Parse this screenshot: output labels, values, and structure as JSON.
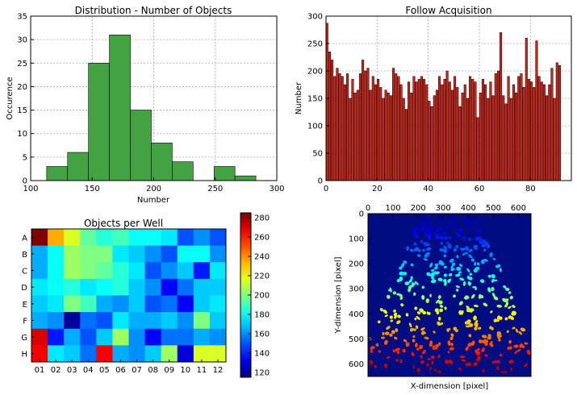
{
  "colors": {
    "hist_bar": "#43a343",
    "follow_bar": "#d62214",
    "image_bg": "#000d82"
  },
  "chart_data": [
    {
      "id": "hist",
      "type": "bar",
      "title": "Distribution - Number of Objects",
      "xlabel": "Number",
      "ylabel": "Occurence",
      "xlim": [
        100,
        300
      ],
      "ylim": [
        0,
        35
      ],
      "xticks": [
        100,
        150,
        200,
        250,
        300
      ],
      "yticks": [
        0,
        5,
        10,
        15,
        20,
        25,
        30,
        35
      ],
      "grid": true,
      "bins": [
        {
          "x0": 113,
          "x1": 130,
          "count": 3
        },
        {
          "x0": 130,
          "x1": 147,
          "count": 6
        },
        {
          "x0": 147,
          "x1": 164,
          "count": 25
        },
        {
          "x0": 164,
          "x1": 181,
          "count": 31
        },
        {
          "x0": 181,
          "x1": 198,
          "count": 15
        },
        {
          "x0": 198,
          "x1": 215,
          "count": 8
        },
        {
          "x0": 215,
          "x1": 232,
          "count": 4
        },
        {
          "x0": 232,
          "x1": 249,
          "count": 0
        },
        {
          "x0": 249,
          "x1": 266,
          "count": 3
        },
        {
          "x0": 266,
          "x1": 283,
          "count": 1
        }
      ]
    },
    {
      "id": "follow",
      "type": "bar",
      "title": "Follow Acquisition",
      "xlabel": "",
      "ylabel": "Number",
      "xlim": [
        0,
        96
      ],
      "ylim": [
        0,
        300
      ],
      "xticks": [
        0,
        20,
        40,
        60,
        80
      ],
      "yticks": [
        0,
        50,
        100,
        150,
        200,
        250,
        300
      ],
      "grid": true,
      "values": [
        287,
        235,
        220,
        190,
        205,
        195,
        190,
        175,
        195,
        150,
        185,
        160,
        165,
        195,
        220,
        200,
        205,
        165,
        190,
        175,
        185,
        170,
        150,
        165,
        160,
        155,
        205,
        195,
        190,
        175,
        150,
        130,
        180,
        160,
        190,
        180,
        185,
        190,
        185,
        175,
        145,
        135,
        155,
        165,
        190,
        175,
        185,
        200,
        180,
        165,
        190,
        170,
        135,
        160,
        175,
        150,
        190,
        185,
        180,
        115,
        160,
        185,
        175,
        150,
        180,
        155,
        195,
        200,
        270,
        155,
        140,
        190,
        150,
        175,
        160,
        190,
        195,
        170,
        260,
        185,
        180,
        170,
        255,
        190,
        180,
        175,
        155,
        175,
        205,
        150,
        215,
        210
      ]
    },
    {
      "id": "heatmap",
      "type": "heatmap",
      "title": "Objects per Well",
      "rows": [
        "A",
        "B",
        "C",
        "D",
        "E",
        "F",
        "G",
        "H"
      ],
      "columns": [
        "01",
        "02",
        "03",
        "04",
        "05",
        "06",
        "07",
        "08",
        "09",
        "10",
        "11",
        "12"
      ],
      "colorbar": {
        "min": 115,
        "max": 285,
        "ticks": [
          120,
          140,
          160,
          180,
          200,
          220,
          240,
          260,
          280
        ]
      },
      "values": [
        [
          285,
          235,
          215,
          195,
          185,
          190,
          180,
          180,
          175,
          150,
          160,
          150
        ],
        [
          165,
          180,
          205,
          200,
          200,
          175,
          170,
          160,
          150,
          180,
          180,
          160
        ],
        [
          165,
          180,
          205,
          200,
          195,
          185,
          175,
          150,
          160,
          170,
          140,
          175
        ],
        [
          175,
          180,
          185,
          175,
          180,
          185,
          170,
          160,
          135,
          155,
          170,
          170
        ],
        [
          170,
          175,
          200,
          190,
          165,
          160,
          170,
          150,
          155,
          135,
          170,
          175
        ],
        [
          165,
          160,
          120,
          155,
          150,
          175,
          165,
          165,
          170,
          160,
          200,
          170
        ],
        [
          270,
          140,
          165,
          150,
          170,
          205,
          160,
          135,
          155,
          155,
          165,
          160
        ],
        [
          265,
          175,
          170,
          155,
          265,
          165,
          160,
          170,
          205,
          130,
          215,
          215
        ]
      ]
    },
    {
      "id": "cellimage",
      "type": "scatter",
      "title": "",
      "xlabel": "X-dimension [pixel]",
      "ylabel": "Y-dimension [pixel]",
      "xlim": [
        0,
        650
      ],
      "ylim": [
        650,
        0
      ],
      "xticks": [
        0,
        100,
        200,
        300,
        400,
        500,
        600
      ],
      "yticks": [
        0,
        100,
        200,
        300,
        400,
        500,
        600
      ],
      "x_axis_position": "top",
      "grid": false
    }
  ]
}
